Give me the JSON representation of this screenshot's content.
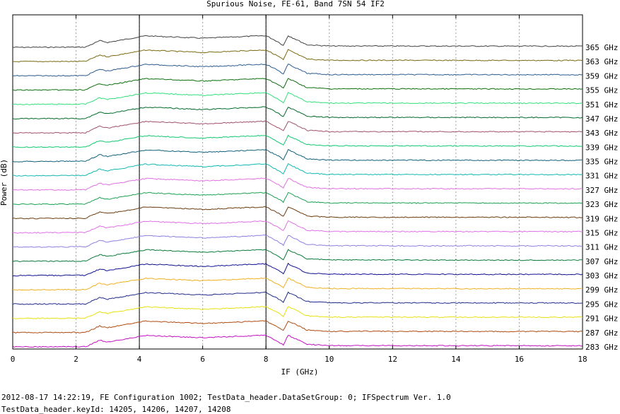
{
  "chart_data": {
    "type": "line",
    "title": "Spurious Noise, FE-61, Band 7SN 54 IF2",
    "xlabel": "IF (GHz)",
    "ylabel": "Power (dB)",
    "xlim": [
      0,
      18
    ],
    "xticks": [
      "0",
      "2",
      "4",
      "6",
      "8",
      "10",
      "12",
      "14",
      "16",
      "18"
    ],
    "grid": true,
    "markers_x": [
      4,
      8
    ],
    "legend_placement": "right, labels at the end of each trace",
    "series": [
      {
        "name": "365 GHz",
        "color": "#404040"
      },
      {
        "name": "363 GHz",
        "color": "#7a6a10"
      },
      {
        "name": "359 GHz",
        "color": "#2c5b8c"
      },
      {
        "name": "355 GHz",
        "color": "#0a6e0a"
      },
      {
        "name": "351 GHz",
        "color": "#30e07a"
      },
      {
        "name": "347 GHz",
        "color": "#006a28"
      },
      {
        "name": "343 GHz",
        "color": "#a05070"
      },
      {
        "name": "339 GHz",
        "color": "#10c870"
      },
      {
        "name": "335 GHz",
        "color": "#10607a"
      },
      {
        "name": "331 GHz",
        "color": "#10b8b0"
      },
      {
        "name": "327 GHz",
        "color": "#e070e0"
      },
      {
        "name": "323 GHz",
        "color": "#1aa050"
      },
      {
        "name": "319 GHz",
        "color": "#6a3a0a"
      },
      {
        "name": "315 GHz",
        "color": "#e070e8"
      },
      {
        "name": "311 GHz",
        "color": "#8a80e0"
      },
      {
        "name": "307 GHz",
        "color": "#0a7a3a"
      },
      {
        "name": "303 GHz",
        "color": "#101090"
      },
      {
        "name": "299 GHz",
        "color": "#f0b020"
      },
      {
        "name": "295 GHz",
        "color": "#202a8a"
      },
      {
        "name": "291 GHz",
        "color": "#e8e010"
      },
      {
        "name": "287 GHz",
        "color": "#b04a10"
      },
      {
        "name": "283 GHz",
        "color": "#c010c0"
      }
    ],
    "extra_series": [
      {
        "name": "299 GHz",
        "color": "#10d0d0"
      },
      {
        "name": "295 GHz",
        "color": "#b010c0"
      },
      {
        "name": "291 GHz",
        "color": "#1a70d0"
      },
      {
        "name": "287 GHz",
        "color": "#20b020"
      },
      {
        "name": "283 GHz",
        "color": "#d01010"
      }
    ]
  },
  "footer": {
    "line1": "2012-08-17 14:22:19, FE Configuration 1002; TestData_header.DataSetGroup: 0; IFSpectrum Ver. 1.0",
    "line2": "TestData_header.keyId: 14205, 14206, 14207, 14208"
  }
}
